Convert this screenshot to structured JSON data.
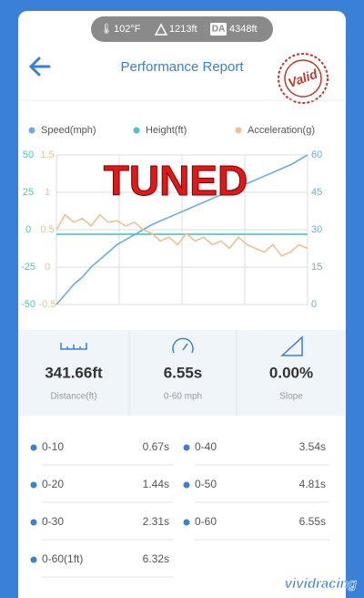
{
  "status_bar": {
    "temperature": "102°F",
    "height": "1213ft",
    "density_label": "DA",
    "density_altitude": "4348ft"
  },
  "header": {
    "title": "Performance Report",
    "stamp": "Valid"
  },
  "chart_data": {
    "type": "line",
    "annotation": "TUNED",
    "series": [
      {
        "name": "Speed(mph)",
        "color": "#6aaee0",
        "axis": "y2",
        "values": [
          0,
          4,
          8,
          11,
          15,
          18,
          21,
          24,
          26,
          28,
          30,
          32,
          33.5,
          35,
          36.5,
          38,
          39.5,
          41,
          42.5,
          44,
          45.5,
          47,
          48.5,
          50,
          51.5,
          53,
          54.5,
          56,
          58,
          60
        ]
      },
      {
        "name": "Height(ft)",
        "color": "#4dc3c3",
        "axis": "y",
        "values": [
          -3,
          -3,
          -3,
          -3,
          -3,
          -3,
          -3,
          -3,
          -3,
          -3,
          -3,
          -3,
          -3,
          -3,
          -3,
          -3,
          -3,
          -3,
          -3,
          -3,
          -3,
          -3,
          -3,
          -3,
          -3,
          -3,
          -3,
          -3,
          -3,
          -3
        ]
      },
      {
        "name": "Acceleration(g)",
        "color": "#f0c090",
        "axis": "y3",
        "values": [
          0.5,
          0.7,
          0.6,
          0.65,
          0.55,
          0.7,
          0.6,
          0.62,
          0.55,
          0.6,
          0.5,
          0.45,
          0.35,
          0.4,
          0.3,
          0.45,
          0.35,
          0.4,
          0.3,
          0.35,
          0.25,
          0.4,
          0.3,
          0.25,
          0.2,
          0.3,
          0.15,
          0.2,
          0.3,
          0.25
        ]
      }
    ],
    "ylim": [
      -50,
      50
    ],
    "yticks": [
      50,
      25,
      0,
      -25,
      -50
    ],
    "y3lim": [
      -0.5,
      1.5
    ],
    "y3ticks": [
      1.5,
      1,
      0.5,
      0,
      -0.5
    ],
    "y2lim": [
      0,
      60
    ],
    "y2ticks": [
      60,
      45,
      30,
      15,
      0
    ],
    "grid": true,
    "legend": "top"
  },
  "stats": [
    {
      "value": "341.66ft",
      "label": "Distance(ft)"
    },
    {
      "value": "6.55s",
      "label": "0-60 mph"
    },
    {
      "value": "0.00%",
      "label": "Slope"
    }
  ],
  "times": [
    {
      "label": "0-10",
      "value": "0.67s"
    },
    {
      "label": "0-40",
      "value": "3.54s"
    },
    {
      "label": "0-20",
      "value": "1.44s"
    },
    {
      "label": "0-50",
      "value": "4.81s"
    },
    {
      "label": "0-30",
      "value": "2.31s"
    },
    {
      "label": "0-60",
      "value": "6.55s"
    },
    {
      "label": "0-60(1ft)",
      "value": "6.32s"
    }
  ],
  "watermark": "vividracing"
}
